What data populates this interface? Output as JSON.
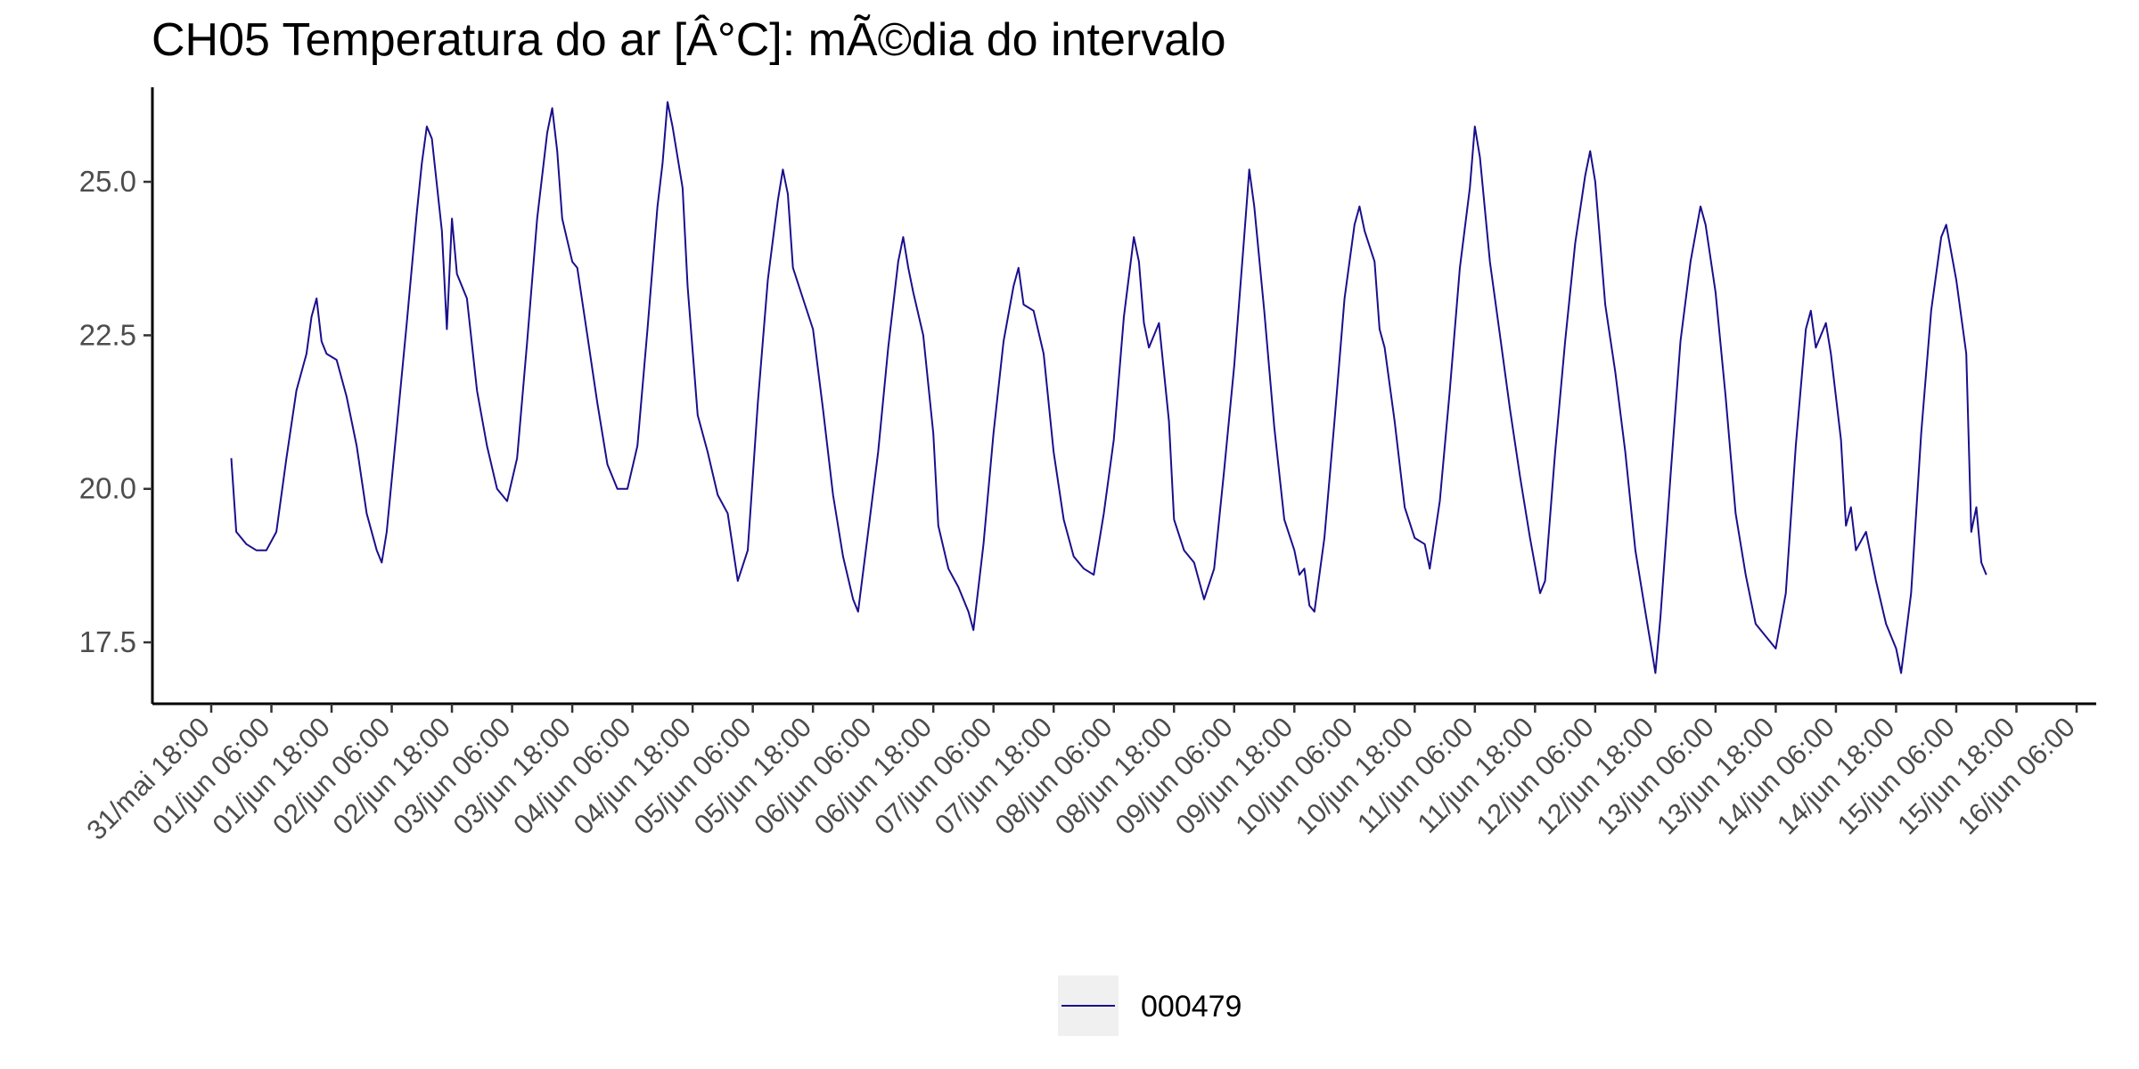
{
  "chart_data": {
    "type": "line",
    "title": "CH05 Temperatura do ar [Â°C]: mÃ©dia do intervalo",
    "xlabel": "",
    "ylabel": "",
    "x_range_hours_ticks": [
      "31/mai 18:00",
      "01/jun 06:00",
      "01/jun 18:00",
      "02/jun 06:00",
      "02/jun 18:00",
      "03/jun 06:00",
      "03/jun 18:00",
      "04/jun 06:00",
      "04/jun 18:00",
      "05/jun 06:00",
      "05/jun 18:00",
      "06/jun 06:00",
      "06/jun 18:00",
      "07/jun 06:00",
      "07/jun 18:00",
      "08/jun 06:00",
      "08/jun 18:00",
      "09/jun 06:00",
      "09/jun 18:00",
      "10/jun 06:00",
      "10/jun 18:00",
      "11/jun 06:00",
      "11/jun 18:00",
      "12/jun 06:00",
      "12/jun 18:00",
      "13/jun 06:00",
      "13/jun 18:00",
      "14/jun 06:00",
      "14/jun 18:00",
      "15/jun 06:00",
      "15/jun 18:00",
      "16/jun 06:00"
    ],
    "y_ticks": [
      "17.5",
      "20.0",
      "22.5",
      "25.0"
    ],
    "y_tick_values": [
      17.5,
      20.0,
      22.5,
      25.0
    ],
    "ylim": [
      16.5,
      26.8
    ],
    "grid": false,
    "legend_position": "bottom",
    "series": [
      {
        "name": "000479",
        "color": "#1a0f8c",
        "points": [
          [
            "31/mai 22:00",
            20.5
          ],
          [
            "31/mai 23:00",
            19.3
          ],
          [
            "01/jun 01:00",
            19.1
          ],
          [
            "01/jun 03:00",
            19.0
          ],
          [
            "01/jun 05:00",
            19.0
          ],
          [
            "01/jun 07:00",
            19.3
          ],
          [
            "01/jun 09:00",
            20.5
          ],
          [
            "01/jun 11:00",
            21.6
          ],
          [
            "01/jun 13:00",
            22.2
          ],
          [
            "01/jun 14:00",
            22.8
          ],
          [
            "01/jun 15:00",
            23.1
          ],
          [
            "01/jun 16:00",
            22.4
          ],
          [
            "01/jun 17:00",
            22.2
          ],
          [
            "01/jun 19:00",
            22.1
          ],
          [
            "01/jun 21:00",
            21.5
          ],
          [
            "01/jun 23:00",
            20.7
          ],
          [
            "02/jun 01:00",
            19.6
          ],
          [
            "02/jun 03:00",
            19.0
          ],
          [
            "02/jun 04:00",
            18.8
          ],
          [
            "02/jun 05:00",
            19.3
          ],
          [
            "02/jun 07:00",
            21.0
          ],
          [
            "02/jun 09:00",
            22.7
          ],
          [
            "02/jun 11:00",
            24.5
          ],
          [
            "02/jun 12:00",
            25.3
          ],
          [
            "02/jun 13:00",
            25.9
          ],
          [
            "02/jun 14:00",
            25.7
          ],
          [
            "02/jun 16:00",
            24.2
          ],
          [
            "02/jun 17:00",
            22.6
          ],
          [
            "02/jun 18:00",
            24.4
          ],
          [
            "02/jun 19:00",
            23.5
          ],
          [
            "02/jun 21:00",
            23.1
          ],
          [
            "02/jun 23:00",
            21.6
          ],
          [
            "03/jun 01:00",
            20.7
          ],
          [
            "03/jun 03:00",
            20.0
          ],
          [
            "03/jun 05:00",
            19.8
          ],
          [
            "03/jun 07:00",
            20.5
          ],
          [
            "03/jun 09:00",
            22.4
          ],
          [
            "03/jun 11:00",
            24.4
          ],
          [
            "03/jun 13:00",
            25.8
          ],
          [
            "03/jun 14:00",
            26.2
          ],
          [
            "03/jun 15:00",
            25.5
          ],
          [
            "03/jun 16:00",
            24.4
          ],
          [
            "03/jun 18:00",
            23.7
          ],
          [
            "03/jun 19:00",
            23.6
          ],
          [
            "03/jun 21:00",
            22.5
          ],
          [
            "03/jun 23:00",
            21.4
          ],
          [
            "04/jun 01:00",
            20.4
          ],
          [
            "04/jun 03:00",
            20.0
          ],
          [
            "04/jun 05:00",
            20.0
          ],
          [
            "04/jun 07:00",
            20.7
          ],
          [
            "04/jun 09:00",
            22.6
          ],
          [
            "04/jun 11:00",
            24.6
          ],
          [
            "04/jun 12:00",
            25.3
          ],
          [
            "04/jun 13:00",
            26.3
          ],
          [
            "04/jun 14:00",
            25.9
          ],
          [
            "04/jun 16:00",
            24.9
          ],
          [
            "04/jun 17:00",
            23.3
          ],
          [
            "04/jun 19:00",
            21.2
          ],
          [
            "04/jun 21:00",
            20.6
          ],
          [
            "04/jun 23:00",
            19.9
          ],
          [
            "05/jun 01:00",
            19.6
          ],
          [
            "05/jun 03:00",
            18.5
          ],
          [
            "05/jun 05:00",
            19.0
          ],
          [
            "05/jun 07:00",
            21.4
          ],
          [
            "05/jun 09:00",
            23.4
          ],
          [
            "05/jun 11:00",
            24.7
          ],
          [
            "05/jun 12:00",
            25.2
          ],
          [
            "05/jun 13:00",
            24.8
          ],
          [
            "05/jun 14:00",
            23.6
          ],
          [
            "05/jun 16:00",
            23.1
          ],
          [
            "05/jun 18:00",
            22.6
          ],
          [
            "05/jun 20:00",
            21.3
          ],
          [
            "05/jun 22:00",
            19.9
          ],
          [
            "06/jun 00:00",
            18.9
          ],
          [
            "06/jun 02:00",
            18.2
          ],
          [
            "06/jun 03:00",
            18.0
          ],
          [
            "06/jun 05:00",
            19.3
          ],
          [
            "06/jun 07:00",
            20.6
          ],
          [
            "06/jun 09:00",
            22.3
          ],
          [
            "06/jun 11:00",
            23.7
          ],
          [
            "06/jun 12:00",
            24.1
          ],
          [
            "06/jun 13:00",
            23.6
          ],
          [
            "06/jun 14:00",
            23.2
          ],
          [
            "06/jun 16:00",
            22.5
          ],
          [
            "06/jun 18:00",
            20.9
          ],
          [
            "06/jun 19:00",
            19.4
          ],
          [
            "06/jun 21:00",
            18.7
          ],
          [
            "06/jun 23:00",
            18.4
          ],
          [
            "07/jun 01:00",
            18.0
          ],
          [
            "07/jun 02:00",
            17.7
          ],
          [
            "07/jun 04:00",
            19.1
          ],
          [
            "07/jun 06:00",
            20.9
          ],
          [
            "07/jun 08:00",
            22.4
          ],
          [
            "07/jun 10:00",
            23.3
          ],
          [
            "07/jun 11:00",
            23.6
          ],
          [
            "07/jun 12:00",
            23.0
          ],
          [
            "07/jun 14:00",
            22.9
          ],
          [
            "07/jun 16:00",
            22.2
          ],
          [
            "07/jun 18:00",
            20.6
          ],
          [
            "07/jun 20:00",
            19.5
          ],
          [
            "07/jun 22:00",
            18.9
          ],
          [
            "08/jun 00:00",
            18.7
          ],
          [
            "08/jun 02:00",
            18.6
          ],
          [
            "08/jun 04:00",
            19.6
          ],
          [
            "08/jun 06:00",
            20.8
          ],
          [
            "08/jun 08:00",
            22.8
          ],
          [
            "08/jun 10:00",
            24.1
          ],
          [
            "08/jun 11:00",
            23.7
          ],
          [
            "08/jun 12:00",
            22.7
          ],
          [
            "08/jun 13:00",
            22.3
          ],
          [
            "08/jun 14:00",
            22.5
          ],
          [
            "08/jun 15:00",
            22.7
          ],
          [
            "08/jun 17:00",
            21.1
          ],
          [
            "08/jun 18:00",
            19.5
          ],
          [
            "08/jun 20:00",
            19.0
          ],
          [
            "08/jun 22:00",
            18.8
          ],
          [
            "09/jun 00:00",
            18.2
          ],
          [
            "09/jun 02:00",
            18.7
          ],
          [
            "09/jun 04:00",
            20.3
          ],
          [
            "09/jun 06:00",
            22.0
          ],
          [
            "09/jun 08:00",
            24.1
          ],
          [
            "09/jun 09:00",
            25.2
          ],
          [
            "09/jun 10:00",
            24.6
          ],
          [
            "09/jun 12:00",
            22.9
          ],
          [
            "09/jun 14:00",
            21.0
          ],
          [
            "09/jun 16:00",
            19.5
          ],
          [
            "09/jun 18:00",
            19.0
          ],
          [
            "09/jun 19:00",
            18.6
          ],
          [
            "09/jun 20:00",
            18.7
          ],
          [
            "09/jun 21:00",
            18.1
          ],
          [
            "09/jun 22:00",
            18.0
          ],
          [
            "10/jun 00:00",
            19.2
          ],
          [
            "10/jun 02:00",
            21.1
          ],
          [
            "10/jun 04:00",
            23.1
          ],
          [
            "10/jun 06:00",
            24.3
          ],
          [
            "10/jun 07:00",
            24.6
          ],
          [
            "10/jun 08:00",
            24.2
          ],
          [
            "10/jun 10:00",
            23.7
          ],
          [
            "10/jun 11:00",
            22.6
          ],
          [
            "10/jun 12:00",
            22.3
          ],
          [
            "10/jun 14:00",
            21.1
          ],
          [
            "10/jun 16:00",
            19.7
          ],
          [
            "10/jun 18:00",
            19.2
          ],
          [
            "10/jun 20:00",
            19.1
          ],
          [
            "10/jun 21:00",
            18.7
          ],
          [
            "10/jun 23:00",
            19.8
          ],
          [
            "11/jun 01:00",
            21.6
          ],
          [
            "11/jun 03:00",
            23.6
          ],
          [
            "11/jun 05:00",
            24.9
          ],
          [
            "11/jun 06:00",
            25.9
          ],
          [
            "11/jun 07:00",
            25.4
          ],
          [
            "11/jun 09:00",
            23.7
          ],
          [
            "11/jun 11:00",
            22.5
          ],
          [
            "11/jun 13:00",
            21.3
          ],
          [
            "11/jun 15:00",
            20.2
          ],
          [
            "11/jun 17:00",
            19.2
          ],
          [
            "11/jun 19:00",
            18.3
          ],
          [
            "11/jun 20:00",
            18.5
          ],
          [
            "11/jun 22:00",
            20.6
          ],
          [
            "12/jun 00:00",
            22.4
          ],
          [
            "12/jun 02:00",
            24.0
          ],
          [
            "12/jun 04:00",
            25.1
          ],
          [
            "12/jun 05:00",
            25.5
          ],
          [
            "12/jun 06:00",
            25.0
          ],
          [
            "12/jun 08:00",
            23.0
          ],
          [
            "12/jun 10:00",
            21.9
          ],
          [
            "12/jun 12:00",
            20.6
          ],
          [
            "12/jun 14:00",
            19.0
          ],
          [
            "12/jun 16:00",
            18.0
          ],
          [
            "12/jun 17:00",
            17.5
          ],
          [
            "12/jun 18:00",
            17.0
          ],
          [
            "12/jun 19:00",
            17.9
          ],
          [
            "12/jun 21:00",
            20.2
          ],
          [
            "12/jun 23:00",
            22.4
          ],
          [
            "13/jun 01:00",
            23.7
          ],
          [
            "13/jun 03:00",
            24.6
          ],
          [
            "13/jun 04:00",
            24.3
          ],
          [
            "13/jun 06:00",
            23.2
          ],
          [
            "13/jun 08:00",
            21.5
          ],
          [
            "13/jun 10:00",
            19.6
          ],
          [
            "13/jun 12:00",
            18.6
          ],
          [
            "13/jun 14:00",
            17.8
          ],
          [
            "13/jun 16:00",
            17.6
          ],
          [
            "13/jun 18:00",
            17.4
          ],
          [
            "13/jun 20:00",
            18.3
          ],
          [
            "13/jun 22:00",
            20.7
          ],
          [
            "14/jun 00:00",
            22.6
          ],
          [
            "14/jun 01:00",
            22.9
          ],
          [
            "14/jun 02:00",
            22.3
          ],
          [
            "14/jun 03:00",
            22.5
          ],
          [
            "14/jun 04:00",
            22.7
          ],
          [
            "14/jun 05:00",
            22.2
          ],
          [
            "14/jun 07:00",
            20.8
          ],
          [
            "14/jun 08:00",
            19.4
          ],
          [
            "14/jun 09:00",
            19.7
          ],
          [
            "14/jun 10:00",
            19.0
          ],
          [
            "14/jun 12:00",
            19.3
          ],
          [
            "14/jun 14:00",
            18.5
          ],
          [
            "14/jun 16:00",
            17.8
          ],
          [
            "14/jun 18:00",
            17.4
          ],
          [
            "14/jun 19:00",
            17.0
          ],
          [
            "14/jun 21:00",
            18.3
          ],
          [
            "14/jun 23:00",
            20.9
          ],
          [
            "15/jun 01:00",
            22.9
          ],
          [
            "15/jun 03:00",
            24.1
          ],
          [
            "15/jun 04:00",
            24.3
          ],
          [
            "15/jun 06:00",
            23.4
          ],
          [
            "15/jun 08:00",
            22.2
          ],
          [
            "15/jun 09:00",
            19.3
          ],
          [
            "15/jun 10:00",
            19.7
          ],
          [
            "15/jun 11:00",
            18.8
          ],
          [
            "15/jun 12:00",
            18.6
          ]
        ]
      }
    ]
  },
  "legend": {
    "label": "000479"
  }
}
